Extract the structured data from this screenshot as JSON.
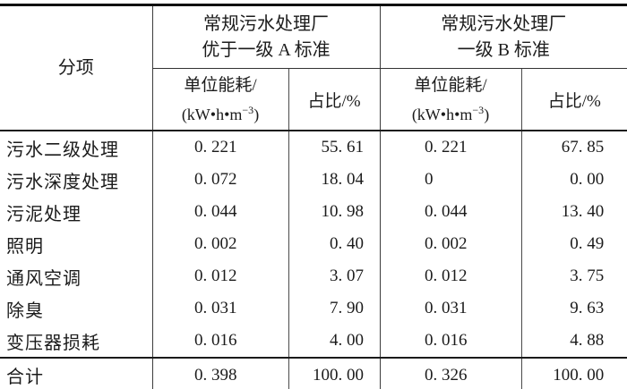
{
  "table": {
    "col_header": {
      "item": "分项",
      "groups": [
        {
          "line1": "常规污水处理厂",
          "line2": "优于一级 A 标准"
        },
        {
          "line1": "常规污水处理厂",
          "line2": "一级 B 标准"
        }
      ],
      "unit_energy": {
        "line1": "单位能耗/",
        "unit_prefix": "(kW•h•m",
        "unit_sup": "−3",
        "unit_suffix": ")"
      },
      "percent": "占比/%"
    },
    "rows": [
      {
        "label": "污水二级处理",
        "a_energy": "0. 221",
        "a_pct": "55. 61",
        "b_energy": "0. 221",
        "b_pct": "67. 85"
      },
      {
        "label": "污水深度处理",
        "a_energy": "0. 072",
        "a_pct": "18. 04",
        "b_energy": "0",
        "b_pct": "0. 00"
      },
      {
        "label": "污泥处理",
        "a_energy": "0. 044",
        "a_pct": "10. 98",
        "b_energy": "0. 044",
        "b_pct": "13. 40"
      },
      {
        "label": "照明",
        "a_energy": "0. 002",
        "a_pct": "0. 40",
        "b_energy": "0. 002",
        "b_pct": "0. 49"
      },
      {
        "label": "通风空调",
        "a_energy": "0. 012",
        "a_pct": "3. 07",
        "b_energy": "0. 012",
        "b_pct": "3. 75"
      },
      {
        "label": "除臭",
        "a_energy": "0. 031",
        "a_pct": "7. 90",
        "b_energy": "0. 031",
        "b_pct": "9. 63"
      },
      {
        "label": "变压器损耗",
        "a_energy": "0. 016",
        "a_pct": "4. 00",
        "b_energy": "0. 016",
        "b_pct": "4. 88"
      }
    ],
    "total": {
      "label": "合计",
      "a_energy": "0. 398",
      "a_pct": "100. 00",
      "b_energy": "0. 326",
      "b_pct": "100. 00"
    }
  }
}
